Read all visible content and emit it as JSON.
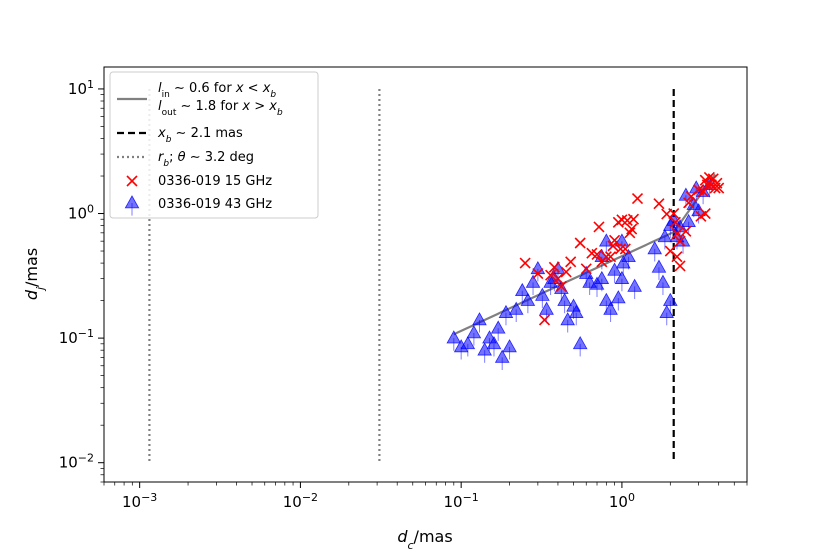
{
  "chart_data": {
    "type": "scatter",
    "xscale": "log",
    "yscale": "log",
    "xlim": [
      0.0006,
      6
    ],
    "ylim": [
      0.007,
      15
    ],
    "xlabel": {
      "base": "d",
      "sub": "c",
      "unit": "/mas"
    },
    "ylabel": {
      "base": "d",
      "sub": "j",
      "unit": "/mas"
    },
    "xticks": [
      {
        "value": 0.001,
        "base": "10",
        "exp": "−3"
      },
      {
        "value": 0.01,
        "base": "10",
        "exp": "−2"
      },
      {
        "value": 0.1,
        "base": "10",
        "exp": "−1"
      },
      {
        "value": 1,
        "base": "10",
        "exp": "0"
      }
    ],
    "yticks": [
      {
        "value": 0.01,
        "base": "10",
        "exp": "−2"
      },
      {
        "value": 0.1,
        "base": "10",
        "exp": "−1"
      },
      {
        "value": 1,
        "base": "10",
        "exp": "0"
      },
      {
        "value": 10,
        "base": "10",
        "exp": "1"
      }
    ],
    "grid": false,
    "legend_position": "top-left",
    "colors": {
      "fit": "#808080",
      "break": "#000000",
      "rb": "#808080",
      "s15": "#ff0000",
      "s43": "#0000ff"
    },
    "legend": {
      "fit_line1": "l_in ∼ 0.6 for x < x_b",
      "fit_line2": "l_out ∼ 1.8 for x > x_b",
      "break": "x_b ∼ 2.1 mas",
      "rb": "r_b; θ ∼ 3.2 deg",
      "s15": "0336-019 15 GHz",
      "s43": "0336-019 43 GHz"
    },
    "fit": {
      "x_break": 2.1,
      "y_break": 0.71,
      "l_in": 0.6,
      "l_out": 1.8,
      "x_start": 0.09,
      "x_end": 3.8
    },
    "vlines": [
      {
        "name": "rb-line-1",
        "x": 0.00115,
        "y": [
          0.01,
          10
        ],
        "style": "dotted"
      },
      {
        "name": "rb-line-2",
        "x": 0.031,
        "y": [
          0.01,
          10
        ],
        "style": "dotted"
      },
      {
        "name": "break-line",
        "x": 2.1,
        "y": [
          0.01,
          10
        ],
        "style": "dashed"
      }
    ],
    "series": [
      {
        "name": "0336-019 15 GHz",
        "marker": "x",
        "points": [
          [
            0.25,
            0.4
          ],
          [
            0.3,
            0.33
          ],
          [
            0.33,
            0.14
          ],
          [
            0.36,
            0.32
          ],
          [
            0.38,
            0.37
          ],
          [
            0.4,
            0.3
          ],
          [
            0.42,
            0.26
          ],
          [
            0.45,
            0.34
          ],
          [
            0.48,
            0.41
          ],
          [
            0.55,
            0.58
          ],
          [
            0.6,
            0.36
          ],
          [
            0.65,
            0.48
          ],
          [
            0.7,
            0.47
          ],
          [
            0.72,
            0.78
          ],
          [
            0.75,
            0.41
          ],
          [
            0.8,
            0.45
          ],
          [
            0.85,
            0.45
          ],
          [
            0.88,
            0.55
          ],
          [
            0.9,
            0.61
          ],
          [
            0.95,
            0.85
          ],
          [
            0.98,
            0.52
          ],
          [
            1.0,
            0.89
          ],
          [
            1.05,
            0.52
          ],
          [
            1.08,
            0.88
          ],
          [
            1.12,
            0.7
          ],
          [
            1.15,
            0.75
          ],
          [
            1.18,
            0.9
          ],
          [
            1.25,
            1.32
          ],
          [
            1.7,
            1.2
          ],
          [
            1.9,
            0.99
          ],
          [
            2.0,
            0.5
          ],
          [
            2.1,
            1.0
          ],
          [
            2.15,
            0.85
          ],
          [
            2.2,
            0.69
          ],
          [
            2.3,
            0.6
          ],
          [
            2.5,
            0.72
          ],
          [
            2.6,
            1.22
          ],
          [
            2.7,
            1.37
          ],
          [
            3.0,
            1.55
          ],
          [
            3.1,
            0.95
          ],
          [
            3.2,
            1.5
          ],
          [
            3.3,
            1.85
          ],
          [
            3.4,
            1.7
          ],
          [
            3.5,
            1.95
          ],
          [
            3.6,
            1.7
          ],
          [
            3.7,
            1.9
          ],
          [
            3.8,
            1.6
          ],
          [
            3.9,
            1.75
          ],
          [
            4.0,
            1.6
          ],
          [
            2.2,
            0.45
          ],
          [
            2.3,
            0.38
          ],
          [
            3.3,
            1.0
          ]
        ]
      },
      {
        "name": "0336-019 43 GHz",
        "marker": "^",
        "points": [
          [
            0.09,
            0.1
          ],
          [
            0.1,
            0.085
          ],
          [
            0.11,
            0.09
          ],
          [
            0.12,
            0.11
          ],
          [
            0.13,
            0.14
          ],
          [
            0.14,
            0.08
          ],
          [
            0.15,
            0.1
          ],
          [
            0.16,
            0.09
          ],
          [
            0.17,
            0.12
          ],
          [
            0.18,
            0.07
          ],
          [
            0.19,
            0.16
          ],
          [
            0.2,
            0.085
          ],
          [
            0.22,
            0.17
          ],
          [
            0.24,
            0.24
          ],
          [
            0.26,
            0.2
          ],
          [
            0.28,
            0.28
          ],
          [
            0.3,
            0.36
          ],
          [
            0.32,
            0.22
          ],
          [
            0.34,
            0.17
          ],
          [
            0.36,
            0.28
          ],
          [
            0.38,
            0.3
          ],
          [
            0.4,
            0.36
          ],
          [
            0.42,
            0.25
          ],
          [
            0.44,
            0.2
          ],
          [
            0.46,
            0.14
          ],
          [
            0.5,
            0.18
          ],
          [
            0.52,
            0.16
          ],
          [
            0.55,
            0.09
          ],
          [
            0.6,
            0.33
          ],
          [
            0.63,
            0.28
          ],
          [
            0.7,
            0.27
          ],
          [
            0.75,
            0.3
          ],
          [
            0.8,
            0.2
          ],
          [
            0.85,
            0.17
          ],
          [
            0.9,
            0.35
          ],
          [
            0.95,
            0.21
          ],
          [
            1.0,
            0.3
          ],
          [
            1.0,
            0.6
          ],
          [
            1.02,
            0.4
          ],
          [
            1.1,
            0.45
          ],
          [
            1.2,
            0.26
          ],
          [
            0.8,
            0.6
          ],
          [
            0.75,
            0.45
          ],
          [
            1.6,
            0.52
          ],
          [
            1.7,
            0.37
          ],
          [
            1.8,
            0.28
          ],
          [
            1.9,
            0.16
          ],
          [
            2.0,
            0.2
          ],
          [
            2.0,
            0.8
          ],
          [
            2.1,
            0.88
          ],
          [
            2.2,
            0.65
          ],
          [
            2.3,
            0.78
          ],
          [
            2.4,
            0.6
          ],
          [
            2.6,
            0.86
          ],
          [
            2.8,
            1.18
          ],
          [
            3.0,
            1.05
          ],
          [
            3.2,
            1.5
          ],
          [
            3.5,
            1.7
          ],
          [
            2.9,
            1.6
          ],
          [
            1.85,
            0.65
          ],
          [
            2.5,
            1.4
          ]
        ]
      }
    ]
  }
}
